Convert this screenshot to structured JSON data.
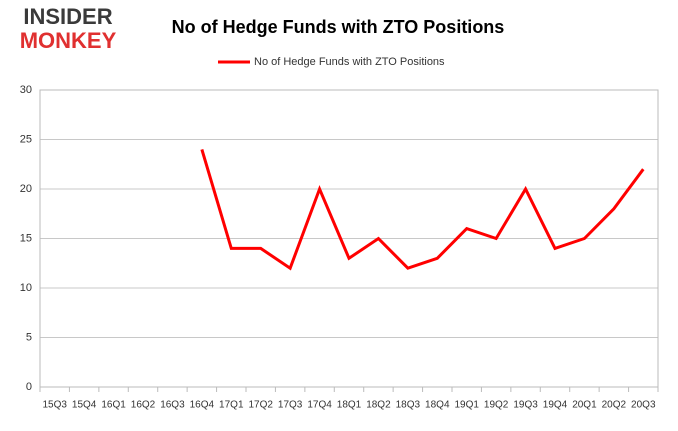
{
  "logo": {
    "top": "INSIDER",
    "bottom": "MONKEY"
  },
  "chart_data": {
    "type": "line",
    "title": "No of Hedge Funds with ZTO Positions",
    "categories": [
      "15Q3",
      "15Q4",
      "16Q1",
      "16Q2",
      "16Q3",
      "16Q4",
      "17Q1",
      "17Q2",
      "17Q3",
      "17Q4",
      "18Q1",
      "18Q2",
      "18Q3",
      "18Q4",
      "19Q1",
      "19Q2",
      "19Q3",
      "19Q4",
      "20Q1",
      "20Q2",
      "20Q3"
    ],
    "series": [
      {
        "name": "No of Hedge Funds with ZTO Positions",
        "color": "#ff0000",
        "values": [
          null,
          null,
          null,
          null,
          null,
          24,
          14,
          14,
          12,
          20,
          13,
          15,
          12,
          13,
          16,
          15,
          20,
          14,
          15,
          18,
          22
        ]
      }
    ],
    "ylim": [
      0,
      30
    ],
    "yticks": [
      0,
      5,
      10,
      15,
      20,
      25,
      30
    ],
    "grid": true,
    "legend": "top"
  }
}
